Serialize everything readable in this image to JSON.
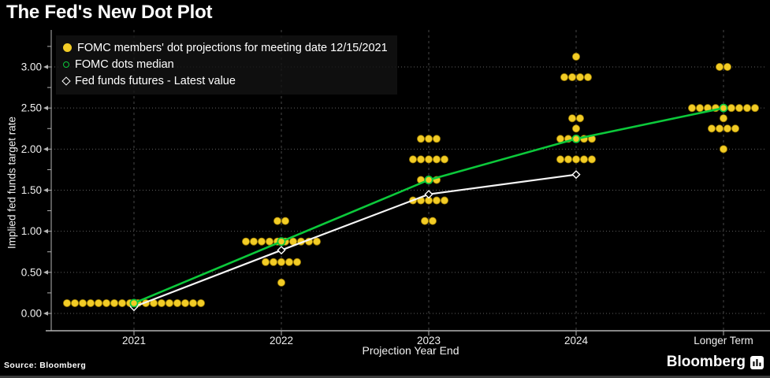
{
  "colors": {
    "background": "#000000",
    "text": "#ffffff",
    "tick_text": "#f0f0f0",
    "grid_dotted": "#5f5f5f",
    "grid_dashed": "#474747",
    "axis_line": "#b3b3b3",
    "dot_yellow": "#f2cc26",
    "dot_edge": "#9a7a00",
    "median_green": "#0cc93b",
    "futures_white": "#f5f5f5"
  },
  "footer": {
    "source": "Source: Bloomberg",
    "brand": "Bloomberg"
  },
  "chart_data": {
    "type": "scatter",
    "title": "The Fed's New Dot Plot",
    "xlabel": "Projection Year End",
    "ylabel": "Implied fed funds target rate",
    "categories": [
      "2021",
      "2022",
      "2023",
      "2024",
      "Longer Term"
    ],
    "ylim": [
      -0.21,
      3.43
    ],
    "grid": true,
    "legend_position": "top-left",
    "y_ticks": [
      {
        "value": 0.0,
        "label": "0.00"
      },
      {
        "value": 0.5,
        "label": "0.50"
      },
      {
        "value": 1.0,
        "label": "1.00"
      },
      {
        "value": 1.5,
        "label": "1.50"
      },
      {
        "value": 2.0,
        "label": "2.00"
      },
      {
        "value": 2.5,
        "label": "2.50"
      },
      {
        "value": 3.0,
        "label": "3.00"
      }
    ],
    "series": [
      {
        "name": "FOMC members' dot projections for meeting date 12/15/2021",
        "type": "dots",
        "points": [
          {
            "category": "2021",
            "dots": [
              {
                "value": 0.125,
                "count": 18
              }
            ]
          },
          {
            "category": "2022",
            "dots": [
              {
                "value": 1.125,
                "count": 2
              },
              {
                "value": 0.875,
                "count": 10
              },
              {
                "value": 0.625,
                "count": 5
              },
              {
                "value": 0.375,
                "count": 1
              }
            ]
          },
          {
            "category": "2023",
            "dots": [
              {
                "value": 2.125,
                "count": 3
              },
              {
                "value": 1.875,
                "count": 5
              },
              {
                "value": 1.625,
                "count": 3
              },
              {
                "value": 1.375,
                "count": 5
              },
              {
                "value": 1.125,
                "count": 2
              }
            ]
          },
          {
            "category": "2024",
            "dots": [
              {
                "value": 3.125,
                "count": 1
              },
              {
                "value": 2.875,
                "count": 4
              },
              {
                "value": 2.375,
                "count": 2
              },
              {
                "value": 2.25,
                "count": 1
              },
              {
                "value": 2.125,
                "count": 5
              },
              {
                "value": 1.875,
                "count": 5
              }
            ]
          },
          {
            "category": "Longer Term",
            "dots": [
              {
                "value": 3.0,
                "count": 2
              },
              {
                "value": 2.5,
                "count": 9
              },
              {
                "value": 2.375,
                "count": 1
              },
              {
                "value": 2.25,
                "count": 4
              },
              {
                "value": 2.0,
                "count": 1
              }
            ]
          }
        ]
      },
      {
        "name": "FOMC dots median",
        "type": "line",
        "marker": "open-circle",
        "values": [
          0.125,
          0.875,
          1.625,
          2.125,
          2.5
        ]
      },
      {
        "name": "Fed funds futures - Latest value",
        "type": "line",
        "marker": "open-diamond",
        "values": [
          0.08,
          0.77,
          1.45,
          1.69,
          null
        ]
      }
    ]
  }
}
